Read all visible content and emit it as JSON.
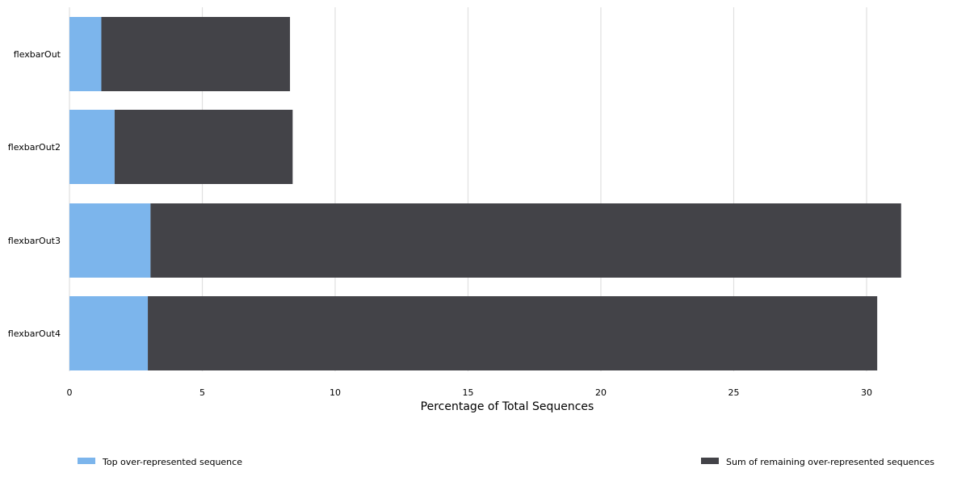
{
  "chart_data": {
    "type": "bar",
    "orientation": "horizontal",
    "stacked": true,
    "categories": [
      "flexbarOut",
      "flexbarOut2",
      "flexbarOut3",
      "flexbarOut4"
    ],
    "series": [
      {
        "name": "Top over-represented sequence",
        "color": "#7cb5ec",
        "values": [
          1.2,
          1.7,
          3.05,
          2.95
        ]
      },
      {
        "name": "Sum of remaining over-represented sequences",
        "color": "#434348",
        "values": [
          7.1,
          6.7,
          28.25,
          27.45
        ]
      }
    ],
    "xlabel": "Percentage of Total Sequences",
    "ylabel": "",
    "xlim": [
      0,
      31.8
    ],
    "xticks": [
      0,
      5,
      10,
      15,
      20,
      25,
      30
    ],
    "grid": true,
    "legend": "bottom"
  }
}
